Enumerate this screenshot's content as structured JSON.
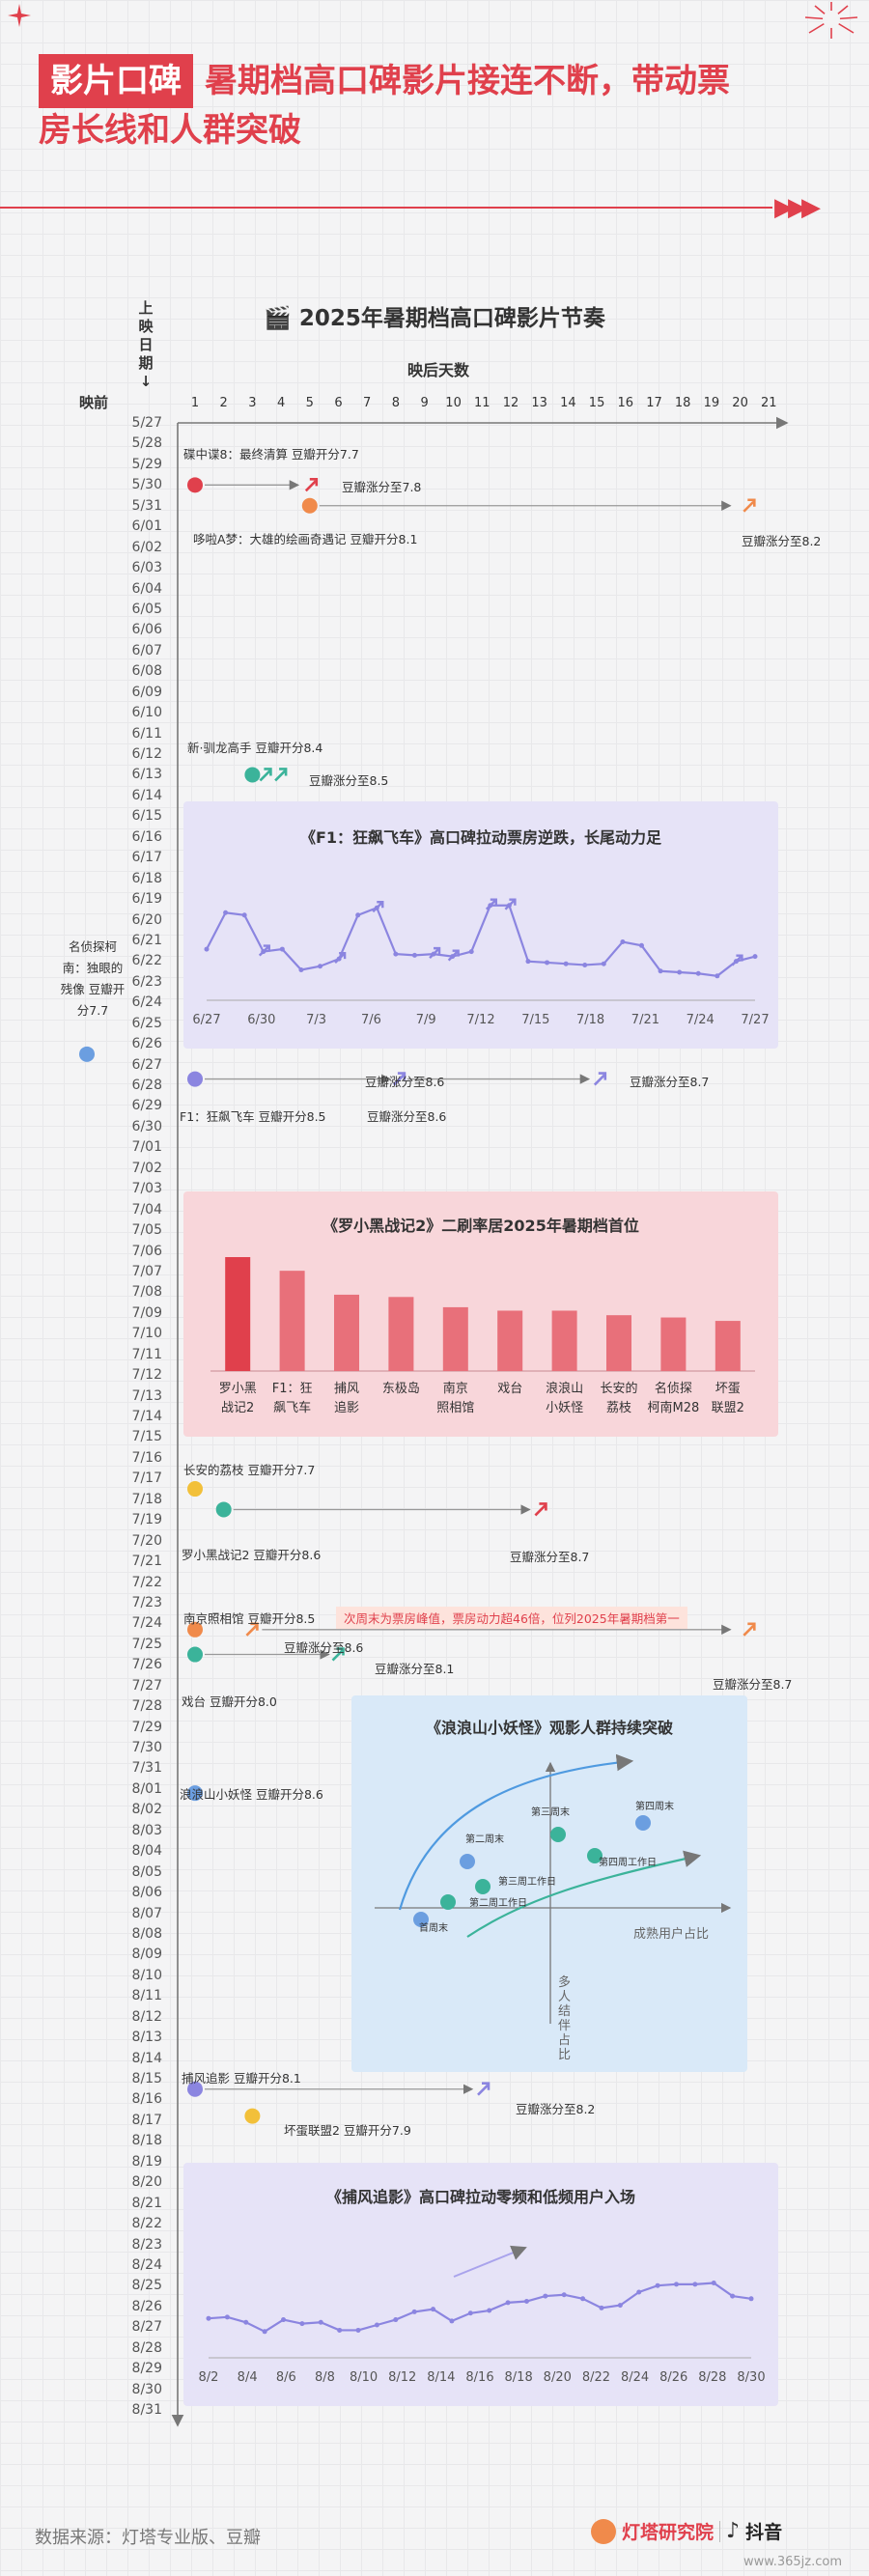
{
  "header": {
    "tag": "影片口碑",
    "title_line1": "暑期档高口碑影片接连不断，带动票",
    "title_line2": "房长线和人群突破"
  },
  "main_chart": {
    "title": "2025年暑期档高口碑影片节奏",
    "y_axis_label": "上映日期↓",
    "x_axis_label": "映后天数",
    "pre_label": "映前",
    "day_ticks": [
      "1",
      "2",
      "3",
      "4",
      "5",
      "6",
      "7",
      "8",
      "9",
      "10",
      "11",
      "12",
      "13",
      "14",
      "15",
      "16",
      "17",
      "18",
      "19",
      "20",
      "21"
    ],
    "dates": [
      "5/27",
      "5/28",
      "5/29",
      "5/30",
      "5/31",
      "6/01",
      "6/02",
      "6/03",
      "6/04",
      "6/05",
      "6/06",
      "6/07",
      "6/08",
      "6/09",
      "6/10",
      "6/11",
      "6/12",
      "6/13",
      "6/14",
      "6/15",
      "6/16",
      "6/17",
      "6/18",
      "6/19",
      "6/20",
      "6/21",
      "6/22",
      "6/23",
      "6/24",
      "6/25",
      "6/26",
      "6/27",
      "6/28",
      "6/29",
      "6/30",
      "7/01",
      "7/02",
      "7/03",
      "7/04",
      "7/05",
      "7/06",
      "7/07",
      "7/08",
      "7/09",
      "7/10",
      "7/11",
      "7/12",
      "7/13",
      "7/14",
      "7/15",
      "7/16",
      "7/17",
      "7/18",
      "7/19",
      "7/20",
      "7/21",
      "7/22",
      "7/23",
      "7/24",
      "7/25",
      "7/26",
      "7/27",
      "7/28",
      "7/29",
      "7/30",
      "7/31",
      "8/01",
      "8/02",
      "8/03",
      "8/04",
      "8/05",
      "8/06",
      "8/07",
      "8/08",
      "8/09",
      "8/10",
      "8/11",
      "8/12",
      "8/13",
      "8/14",
      "8/15",
      "8/16",
      "8/17",
      "8/18",
      "8/19",
      "8/20",
      "8/21",
      "8/22",
      "8/23",
      "8/24",
      "8/25",
      "8/26",
      "8/27",
      "8/28",
      "8/29",
      "8/30",
      "8/31"
    ],
    "movie_labels": {
      "m1_open": "碟中谍8：最终清算 豆瓣开分7.7",
      "m1_up": "豆瓣涨分至7.8",
      "m2_open": "哆啦A梦：大雄的绘画奇遇记 豆瓣开分8.1",
      "m2_up": "豆瓣涨分至8.2",
      "m3_open": "新·驯龙高手 豆瓣开分8.4",
      "m3_up": "豆瓣涨分至8.5",
      "m4_open": "名侦探柯南：独眼的残像 豆瓣开分7.7",
      "m5_open": "F1：狂飙飞车 豆瓣开分8.5",
      "m5_up1": "豆瓣涨分至8.6",
      "m5_up2": "豆瓣涨分至8.7",
      "m6_open": "长安的荔枝 豆瓣开分7.7",
      "m7_open": "罗小黑战记2 豆瓣开分8.6",
      "m7_up": "豆瓣涨分至8.7",
      "m8_open": "南京照相馆 豆瓣开分8.5",
      "m8_note": "次周末为票房峰值，票房动力超46倍，位列2025年暑期档第一",
      "m8_up1": "豆瓣涨分至8.6",
      "m8_up2": "豆瓣涨分至8.7",
      "m9_up": "豆瓣涨分至8.1",
      "m9_open": "戏台 豆瓣开分8.0",
      "m10_open": "浪浪山小妖怪 豆瓣开分8.6",
      "m11_open": "捕风追影 豆瓣开分8.1",
      "m11_up": "豆瓣涨分至8.2",
      "m12_open": "坏蛋联盟2 豆瓣开分7.9"
    },
    "colors": {
      "red": "#e0404c",
      "orange": "#f08a4b",
      "green": "#3bb39a",
      "blue": "#6b9ee0",
      "purple": "#8b85e0",
      "yellow": "#f2c03a"
    }
  },
  "panel_f1": {
    "title": "《F1：狂飙飞车》高口碑拉动票房逆跌，长尾动力足",
    "xticks": [
      "6/27",
      "6/30",
      "7/3",
      "7/6",
      "7/9",
      "7/12",
      "7/15",
      "7/18",
      "7/21",
      "7/24",
      "7/27"
    ],
    "chart_data": {
      "type": "line",
      "y": [
        42,
        72,
        70,
        40,
        42,
        25,
        28,
        34,
        70,
        76,
        38,
        37,
        38,
        36,
        40,
        78,
        78,
        32,
        31,
        30,
        29,
        30,
        48,
        45,
        24,
        23,
        22,
        20,
        32,
        36
      ]
    }
  },
  "panel_lxh": {
    "title": "《罗小黑战记2》二刷率居2025年暑期档首位",
    "chart_data": {
      "type": "bar",
      "categories": [
        "罗小黑战记2",
        "F1：狂飙飞车",
        "捕风追影",
        "东极岛",
        "南京照相馆",
        "戏台",
        "浪浪山小妖怪",
        "长安的荔枝",
        "名侦探柯南M28",
        "坏蛋联盟2"
      ],
      "values": [
        100,
        88,
        67,
        65,
        56,
        53,
        53,
        49,
        47,
        44
      ]
    },
    "label_lines": [
      [
        "罗小黑",
        "战记2"
      ],
      [
        "F1：狂",
        "飙飞车"
      ],
      [
        "捕风",
        "追影"
      ],
      [
        "东极岛",
        ""
      ],
      [
        "南京",
        "照相馆"
      ],
      [
        "戏台",
        ""
      ],
      [
        "浪浪山",
        "小妖怪"
      ],
      [
        "长安的",
        "荔枝"
      ],
      [
        "名侦探",
        "柯南M28"
      ],
      [
        "坏蛋",
        "联盟2"
      ]
    ]
  },
  "panel_llsh": {
    "title": "《浪浪山小妖怪》观影人群持续突破",
    "x_label": "成熟用户占比",
    "y_label": "多人结伴占比",
    "points": [
      {
        "label": "首周末"
      },
      {
        "label": "第二周末"
      },
      {
        "label": "第三周末"
      },
      {
        "label": "第四周末"
      },
      {
        "label": "第二周工作日"
      },
      {
        "label": "第三周工作日"
      },
      {
        "label": "第四周工作日"
      }
    ]
  },
  "panel_bfzy": {
    "title": "《捕风追影》高口碑拉动零频和低频用户入场",
    "xticks": [
      "8/2",
      "8/4",
      "8/6",
      "8/8",
      "8/10",
      "8/12",
      "8/14",
      "8/16",
      "8/18",
      "8/20",
      "8/22",
      "8/24",
      "8/26",
      "8/28",
      "8/30"
    ],
    "chart_data": {
      "type": "line",
      "y": [
        30,
        31,
        27,
        20,
        29,
        26,
        27,
        21,
        21,
        25,
        29,
        35,
        37,
        28,
        34,
        36,
        42,
        43,
        47,
        48,
        45,
        38,
        40,
        50,
        55,
        56,
        56,
        57,
        47,
        45
      ]
    }
  },
  "footer": {
    "source": "数据来源：灯塔专业版、豆瓣",
    "brand1": "灯塔研究院",
    "brand2": "抖音",
    "watermark": "www.365jz.com"
  }
}
